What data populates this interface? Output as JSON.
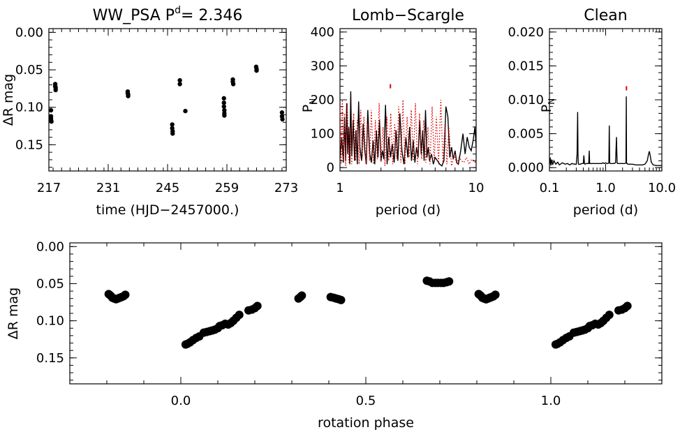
{
  "chart_data": [
    {
      "type": "scatter",
      "title": "WW_PSA P",
      "title_sup": "d",
      "title_suffix": "= 2.346",
      "xlabel": "time (HJD−2457000.)",
      "ylabel": "ΔR mag",
      "xlim": [
        217,
        273
      ],
      "ylim": [
        0.185,
        -0.005
      ],
      "xticks": [
        "217",
        "231",
        "245",
        "259",
        "273"
      ],
      "yticks": [
        "0.00",
        "0.05",
        "0.10",
        "0.15"
      ],
      "x": [
        217.5,
        217.5,
        217.5,
        217.5,
        217.6,
        218.5,
        218.5,
        218.6,
        218.6,
        235.6,
        235.6,
        235.7,
        235.7,
        246.1,
        246.1,
        246.2,
        246.2,
        247.9,
        247.9,
        249.2,
        258.3,
        258.3,
        258.3,
        258.4,
        258.4,
        258.4,
        260.4,
        260.4,
        260.5,
        265.9,
        266.0,
        266.0,
        272.0,
        272.0,
        272.1
      ],
      "y": [
        0.104,
        0.112,
        0.115,
        0.117,
        0.119,
        0.069,
        0.072,
        0.074,
        0.077,
        0.079,
        0.081,
        0.083,
        0.085,
        0.123,
        0.128,
        0.132,
        0.135,
        0.064,
        0.069,
        0.105,
        0.088,
        0.094,
        0.099,
        0.104,
        0.108,
        0.111,
        0.063,
        0.066,
        0.069,
        0.046,
        0.049,
        0.051,
        0.107,
        0.112,
        0.116
      ]
    },
    {
      "type": "line",
      "title": "Lomb−Scargle",
      "xlabel": "period (d)",
      "ylabel": "P",
      "ylabel_sub": "N",
      "xscale": "log",
      "xlim": [
        1,
        10
      ],
      "ylim": [
        -10,
        410
      ],
      "xticks": [
        "1",
        "10"
      ],
      "yticks": [
        "0",
        "100",
        "200",
        "300",
        "400"
      ],
      "series": [
        {
          "color": "#000000",
          "style": "solid",
          "x": [
            1.0,
            1.03,
            1.06,
            1.08,
            1.1,
            1.12,
            1.14,
            1.16,
            1.18,
            1.2,
            1.22,
            1.25,
            1.28,
            1.31,
            1.34,
            1.37,
            1.4,
            1.44,
            1.48,
            1.52,
            1.56,
            1.6,
            1.65,
            1.7,
            1.75,
            1.8,
            1.85,
            1.9,
            1.95,
            2.0,
            2.05,
            2.1,
            2.16,
            2.22,
            2.28,
            2.35,
            2.42,
            2.5,
            2.58,
            2.66,
            2.75,
            2.85,
            2.95,
            3.05,
            3.15,
            3.25,
            3.35,
            3.45,
            3.55,
            3.65,
            3.75,
            3.85,
            3.95,
            4.05,
            4.15,
            4.25,
            4.35,
            4.45,
            4.55,
            4.7,
            4.85,
            5.0,
            5.2,
            5.4,
            5.6,
            5.8,
            6.0,
            6.2,
            6.4,
            6.6,
            6.8,
            7.0,
            7.2,
            7.4,
            7.7,
            8.0,
            8.3,
            8.6,
            8.9,
            9.2,
            9.5,
            9.8,
            10.0
          ],
          "y": [
            30,
            90,
            15,
            150,
            20,
            190,
            40,
            120,
            10,
            225,
            35,
            140,
            20,
            110,
            10,
            195,
            60,
            20,
            130,
            50,
            10,
            170,
            45,
            15,
            80,
            10,
            110,
            30,
            140,
            20,
            50,
            25,
            185,
            10,
            90,
            30,
            70,
            15,
            110,
            20,
            160,
            50,
            10,
            90,
            30,
            120,
            20,
            80,
            15,
            60,
            30,
            140,
            40,
            110,
            20,
            170,
            30,
            60,
            20,
            40,
            10,
            30,
            20,
            10,
            5,
            20,
            180,
            150,
            30,
            60,
            25,
            50,
            15,
            10,
            50,
            100,
            40,
            90,
            60,
            50,
            80,
            120,
            60
          ]
        },
        {
          "color": "#e00000",
          "style": "dotted",
          "x": [
            1.0,
            1.02,
            1.04,
            1.06,
            1.08,
            1.1,
            1.13,
            1.16,
            1.19,
            1.22,
            1.26,
            1.3,
            1.34,
            1.38,
            1.42,
            1.46,
            1.5,
            1.55,
            1.6,
            1.65,
            1.7,
            1.76,
            1.82,
            1.88,
            1.94,
            2.0,
            2.07,
            2.14,
            2.21,
            2.28,
            2.36,
            2.44,
            2.52,
            2.61,
            2.7,
            2.8,
            2.9,
            3.0,
            3.11,
            3.22,
            3.34,
            3.46,
            3.58,
            3.71,
            3.84,
            3.98,
            4.12,
            4.27,
            4.42,
            4.58,
            4.75,
            4.92,
            5.1,
            5.3,
            5.5,
            5.7,
            5.9,
            6.1,
            6.3,
            6.6,
            6.9,
            7.2,
            7.5,
            7.8,
            8.1,
            8.5,
            8.9,
            9.3,
            9.7,
            10.0
          ],
          "y": [
            180,
            10,
            200,
            20,
            160,
            5,
            190,
            15,
            120,
            10,
            160,
            20,
            140,
            10,
            170,
            30,
            150,
            10,
            130,
            20,
            170,
            10,
            140,
            25,
            190,
            15,
            120,
            5,
            150,
            20,
            160,
            10,
            130,
            25,
            180,
            15,
            200,
            10,
            150,
            30,
            170,
            20,
            190,
            10,
            160,
            25,
            140,
            15,
            120,
            10,
            180,
            20,
            150,
            10,
            200,
            15,
            130,
            10,
            120,
            5,
            40,
            10,
            30,
            20,
            15,
            30,
            10,
            25,
            20,
            10
          ]
        }
      ],
      "marker": {
        "x": 2.346,
        "y": 240,
        "color": "#e00000"
      }
    },
    {
      "type": "line",
      "title": "Clean",
      "xlabel": "period (d)",
      "ylabel": "P",
      "ylabel_sub": "N",
      "xscale": "log",
      "xlim": [
        0.1,
        10
      ],
      "ylim": [
        -0.0005,
        0.0205
      ],
      "xticks": [
        "0.1",
        "1.0",
        "10.0"
      ],
      "yticks": [
        "0.000",
        "0.005",
        "0.010",
        "0.015",
        "0.020"
      ],
      "series": [
        {
          "color": "#000000",
          "style": "solid",
          "x": [
            0.1,
            0.103,
            0.106,
            0.11,
            0.114,
            0.12,
            0.13,
            0.14,
            0.15,
            0.17,
            0.19,
            0.21,
            0.23,
            0.25,
            0.28,
            0.3,
            0.31,
            0.318,
            0.322,
            0.326,
            0.33,
            0.35,
            0.38,
            0.4,
            0.41,
            0.42,
            0.43,
            0.45,
            0.48,
            0.5,
            0.51,
            0.52,
            0.53,
            0.56,
            0.6,
            0.65,
            0.7,
            0.75,
            0.8,
            0.85,
            0.9,
            0.95,
            1.0,
            1.05,
            1.1,
            1.14,
            1.16,
            1.18,
            1.2,
            1.24,
            1.3,
            1.4,
            1.5,
            1.56,
            1.6,
            1.64,
            1.7,
            1.8,
            2.0,
            2.2,
            2.3,
            2.33,
            2.35,
            2.37,
            2.4,
            2.5,
            2.7,
            3.0,
            3.5,
            4.0,
            4.5,
            5.0,
            5.5,
            5.8,
            6.0,
            6.2,
            6.5,
            7.0,
            8.0,
            9.0,
            10.0
          ],
          "y": [
            0.0005,
            0.0015,
            0.0003,
            0.0012,
            0.0004,
            0.001,
            0.0005,
            0.0008,
            0.0004,
            0.0007,
            0.0005,
            0.0006,
            0.0004,
            0.0006,
            0.0005,
            0.0005,
            0.002,
            0.0082,
            0.002,
            0.0006,
            0.0005,
            0.0005,
            0.0006,
            0.0006,
            0.0018,
            0.0006,
            0.0005,
            0.0006,
            0.0006,
            0.0006,
            0.0025,
            0.0006,
            0.0006,
            0.0006,
            0.0006,
            0.0006,
            0.0006,
            0.0006,
            0.0006,
            0.0006,
            0.0007,
            0.0006,
            0.0007,
            0.0006,
            0.0006,
            0.0007,
            0.0062,
            0.0007,
            0.0006,
            0.0006,
            0.0006,
            0.0006,
            0.0007,
            0.0045,
            0.0007,
            0.0006,
            0.0006,
            0.0006,
            0.0006,
            0.0006,
            0.0007,
            0.0105,
            0.0008,
            0.0006,
            0.0006,
            0.0005,
            0.0005,
            0.0005,
            0.0004,
            0.0004,
            0.0004,
            0.0005,
            0.001,
            0.002,
            0.0024,
            0.0018,
            0.0008,
            0.0004,
            0.0003,
            0.0003,
            0.0003
          ]
        }
      ],
      "marker": {
        "x": 2.346,
        "y": 0.0117,
        "color": "#e00000"
      }
    },
    {
      "type": "scatter",
      "xlabel": "rotation phase",
      "ylabel": "ΔR mag",
      "xlim": [
        -0.3,
        1.3
      ],
      "ylim": [
        0.185,
        -0.005
      ],
      "xticks": [
        "0.0",
        "0.5",
        "1.0"
      ],
      "yticks": [
        "0.00",
        "0.05",
        "0.10",
        "0.15"
      ],
      "x": [
        -0.195,
        -0.19,
        -0.185,
        -0.18,
        -0.175,
        -0.17,
        -0.165,
        -0.16,
        -0.155,
        -0.15,
        0.013,
        0.018,
        0.025,
        0.033,
        0.042,
        0.05,
        0.062,
        0.07,
        0.078,
        0.085,
        0.092,
        0.1,
        0.105,
        0.112,
        0.12,
        0.128,
        0.135,
        0.142,
        0.15,
        0.158,
        0.183,
        0.192,
        0.2,
        0.207,
        0.318,
        0.323,
        0.327,
        0.405,
        0.413,
        0.42,
        0.427,
        0.433,
        0.665,
        0.672,
        0.68,
        0.688,
        0.695,
        0.703,
        0.71,
        0.718,
        0.725,
        0.805,
        0.81,
        0.815,
        0.82,
        0.825,
        0.83,
        0.835,
        0.84,
        0.845,
        0.85
      ],
      "y": [
        0.064,
        0.066,
        0.069,
        0.07,
        0.071,
        0.07,
        0.069,
        0.068,
        0.067,
        0.065,
        0.132,
        0.131,
        0.129,
        0.126,
        0.123,
        0.121,
        0.116,
        0.115,
        0.114,
        0.113,
        0.112,
        0.11,
        0.107,
        0.106,
        0.104,
        0.105,
        0.103,
        0.1,
        0.096,
        0.092,
        0.086,
        0.085,
        0.083,
        0.08,
        0.07,
        0.068,
        0.066,
        0.068,
        0.069,
        0.07,
        0.071,
        0.072,
        0.046,
        0.047,
        0.049,
        0.049,
        0.049,
        0.049,
        0.049,
        0.048,
        0.047,
        0.064,
        0.066,
        0.069,
        0.07,
        0.071,
        0.07,
        0.069,
        0.068,
        0.067,
        0.065
      ]
    }
  ]
}
